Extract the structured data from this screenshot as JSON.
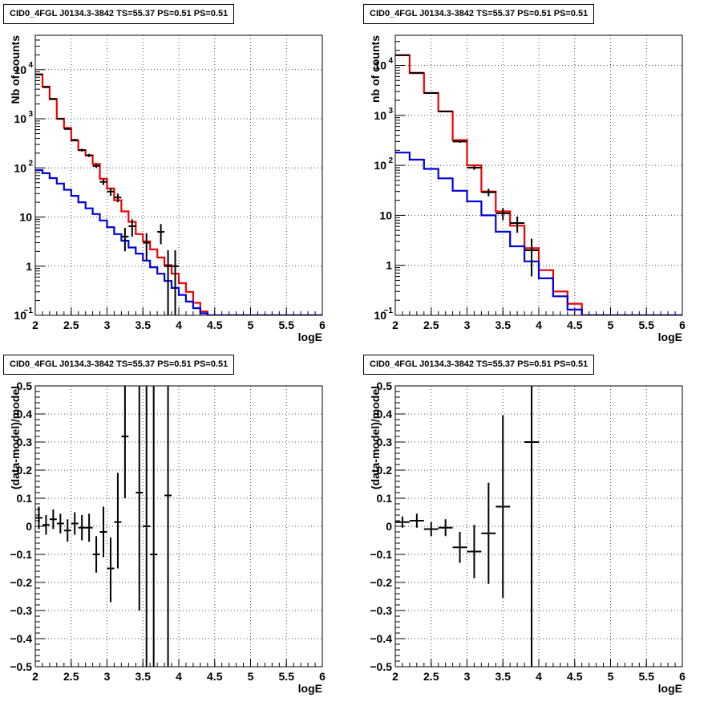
{
  "chart_data": [
    {
      "type": "line",
      "title": "CID0_4FGL J0134.3-3842 TS=55.37 PS=0.51 PS=0.51",
      "xlabel": "logE",
      "ylabel": "Nb of counts",
      "yscale": "log",
      "xlim": [
        2,
        6
      ],
      "ylim": [
        0.1,
        50000
      ],
      "grid": true,
      "x_ticks": [
        "2",
        "2.5",
        "3",
        "3.5",
        "4",
        "4.5",
        "5",
        "5.5",
        "6"
      ],
      "y_ticks": [
        {
          "value": 0.1,
          "label": "10",
          "exp": "−1"
        },
        {
          "value": 1,
          "label": "1",
          "exp": ""
        },
        {
          "value": 10,
          "label": "10",
          "exp": ""
        },
        {
          "value": 100,
          "label": "10",
          "exp": "2"
        },
        {
          "value": 1000,
          "label": "10",
          "exp": "3"
        },
        {
          "value": 10000,
          "label": "10",
          "exp": "4"
        }
      ],
      "series": [
        {
          "color": "#ee0000",
          "style": "step",
          "bin_edges": [
            2,
            2.1,
            2.2,
            2.3,
            2.4,
            2.5,
            2.6,
            2.7,
            2.8,
            2.9,
            3,
            3.1,
            3.2,
            3.3,
            3.4,
            3.5,
            3.6,
            3.7,
            3.8,
            3.9,
            4,
            4.1,
            4.2,
            4.3,
            4.4,
            4.5,
            4.6,
            4.7,
            4.8,
            4.9,
            5,
            5.1,
            5.2,
            5.3,
            5.4,
            5.5,
            5.6,
            5.7,
            5.8,
            5.9,
            6
          ],
          "values": [
            8000,
            4500,
            2500,
            1000,
            650,
            360,
            230,
            180,
            120,
            60,
            38,
            22,
            13,
            8,
            4.5,
            3.2,
            2.2,
            1.5,
            1.05,
            0.7,
            0.45,
            0.3,
            0.18,
            0.12,
            0.1,
            0.1,
            0.1,
            0.1,
            0.1,
            0.1,
            0.1,
            0.1,
            0.1,
            0.1,
            0.1,
            0.1,
            0.1,
            0.1,
            0.1,
            0.1
          ]
        },
        {
          "color": "#0000dd",
          "style": "step",
          "bin_edges": [
            2,
            2.1,
            2.2,
            2.3,
            2.4,
            2.5,
            2.6,
            2.7,
            2.8,
            2.9,
            3,
            3.1,
            3.2,
            3.3,
            3.4,
            3.5,
            3.6,
            3.7,
            3.8,
            3.9,
            4,
            4.1,
            4.2,
            4.3,
            4.4,
            4.5,
            4.6,
            4.7,
            4.8,
            4.9,
            5,
            5.1,
            5.2,
            5.3,
            5.4,
            5.5,
            5.6,
            5.7,
            5.8,
            5.9,
            6
          ],
          "values": [
            90,
            78,
            62,
            48,
            36,
            27,
            20,
            15,
            11.5,
            8.5,
            6.2,
            4.5,
            3.3,
            2.4,
            1.8,
            1.3,
            0.95,
            0.7,
            0.5,
            0.36,
            0.26,
            0.19,
            0.14,
            0.11,
            0.1,
            0.1,
            0.1,
            0.1,
            0.1,
            0.1,
            0.1,
            0.1,
            0.1,
            0.1,
            0.1,
            0.1,
            0.1,
            0.1,
            0.1,
            0.1
          ]
        },
        {
          "color": "#000000",
          "style": "points",
          "points": [
            {
              "x": 2.05,
              "y": 8000,
              "lo": 7900,
              "hi": 8100
            },
            {
              "x": 2.15,
              "y": 4400,
              "lo": 4330,
              "hi": 4470
            },
            {
              "x": 2.25,
              "y": 2550,
              "lo": 2500,
              "hi": 2600
            },
            {
              "x": 2.35,
              "y": 1000,
              "lo": 970,
              "hi": 1030
            },
            {
              "x": 2.45,
              "y": 620,
              "lo": 595,
              "hi": 645
            },
            {
              "x": 2.55,
              "y": 370,
              "lo": 350,
              "hi": 390
            },
            {
              "x": 2.65,
              "y": 230,
              "lo": 215,
              "hi": 245
            },
            {
              "x": 2.75,
              "y": 180,
              "lo": 167,
              "hi": 193
            },
            {
              "x": 2.85,
              "y": 110,
              "lo": 100,
              "hi": 120
            },
            {
              "x": 2.95,
              "y": 52,
              "lo": 45,
              "hi": 59
            },
            {
              "x": 3.05,
              "y": 33,
              "lo": 27,
              "hi": 39
            },
            {
              "x": 3.15,
              "y": 25,
              "lo": 20,
              "hi": 30
            },
            {
              "x": 3.25,
              "y": 4,
              "lo": 2,
              "hi": 6
            },
            {
              "x": 3.35,
              "y": 6.5,
              "lo": 4,
              "hi": 9
            },
            {
              "x": 3.55,
              "y": 3,
              "lo": 1.3,
              "hi": 4.7
            },
            {
              "x": 3.75,
              "y": 5,
              "lo": 2.8,
              "hi": 7.2
            },
            {
              "x": 3.85,
              "y": 1,
              "lo": 0.1,
              "hi": 2.1
            },
            {
              "x": 3.95,
              "y": 1,
              "lo": 0.1,
              "hi": 2.1
            }
          ]
        }
      ]
    },
    {
      "type": "line",
      "title": "CID0_4FGL J0134.3-3842 TS=55.37 PS=0.51 PS=0.51",
      "xlabel": "logE",
      "ylabel": "nb of counts",
      "yscale": "log",
      "xlim": [
        2,
        6
      ],
      "ylim": [
        0.1,
        40000
      ],
      "grid": true,
      "x_ticks": [
        "2",
        "2.5",
        "3",
        "3.5",
        "4",
        "4.5",
        "5",
        "5.5",
        "6"
      ],
      "y_ticks": [
        {
          "value": 0.1,
          "label": "10",
          "exp": "−1"
        },
        {
          "value": 1,
          "label": "1",
          "exp": ""
        },
        {
          "value": 10,
          "label": "10",
          "exp": ""
        },
        {
          "value": 100,
          "label": "10",
          "exp": "2"
        },
        {
          "value": 1000,
          "label": "10",
          "exp": "3"
        },
        {
          "value": 10000,
          "label": "10",
          "exp": "4"
        }
      ],
      "series": [
        {
          "color": "#ee0000",
          "style": "step",
          "bin_edges": [
            2,
            2.2,
            2.4,
            2.6,
            2.8,
            3,
            3.2,
            3.4,
            3.6,
            3.8,
            4,
            4.2,
            4.4,
            4.6,
            4.8,
            5,
            5.2,
            5.4,
            5.6,
            5.8,
            6
          ],
          "values": [
            16000,
            7000,
            2800,
            1200,
            320,
            100,
            30,
            12,
            6.2,
            2.2,
            0.8,
            0.3,
            0.17,
            0.1,
            0.1,
            0.1,
            0.1,
            0.1,
            0.1,
            0.1
          ]
        },
        {
          "color": "#0000dd",
          "style": "step",
          "bin_edges": [
            2,
            2.2,
            2.4,
            2.6,
            2.8,
            3,
            3.2,
            3.4,
            3.6,
            3.8,
            4,
            4.2,
            4.4,
            4.6,
            4.8,
            5,
            5.2,
            5.4,
            5.6,
            5.8,
            6
          ],
          "values": [
            180,
            130,
            85,
            55,
            31,
            19,
            10,
            4.7,
            2.4,
            1.2,
            0.55,
            0.24,
            0.13,
            0.1,
            0.1,
            0.1,
            0.1,
            0.1,
            0.1,
            0.1
          ]
        },
        {
          "color": "#000000",
          "style": "points",
          "points": [
            {
              "x": 2.1,
              "y": 16000,
              "lo": 15870,
              "hi": 16130
            },
            {
              "x": 2.3,
              "y": 7100,
              "lo": 7015,
              "hi": 7185
            },
            {
              "x": 2.5,
              "y": 2800,
              "lo": 2750,
              "hi": 2850
            },
            {
              "x": 2.7,
              "y": 1200,
              "lo": 1165,
              "hi": 1235
            },
            {
              "x": 2.9,
              "y": 300,
              "lo": 283,
              "hi": 317
            },
            {
              "x": 3.1,
              "y": 90,
              "lo": 81,
              "hi": 99
            },
            {
              "x": 3.3,
              "y": 29,
              "lo": 24,
              "hi": 34
            },
            {
              "x": 3.5,
              "y": 11,
              "lo": 8,
              "hi": 14
            },
            {
              "x": 3.7,
              "y": 7,
              "lo": 4.5,
              "hi": 9.5
            },
            {
              "x": 3.9,
              "y": 2,
              "lo": 0.6,
              "hi": 3.4
            }
          ]
        }
      ]
    },
    {
      "type": "scatter",
      "title": "CID0_4FGL J0134.3-3842 TS=55.37 PS=0.51 PS=0.51",
      "xlabel": "logE",
      "ylabel": "(data-model)/model",
      "yscale": "linear",
      "xlim": [
        2,
        6
      ],
      "ylim": [
        -0.5,
        0.5
      ],
      "grid": true,
      "x_ticks": [
        "2",
        "2.5",
        "3",
        "3.5",
        "4",
        "4.5",
        "5",
        "5.5",
        "6"
      ],
      "y_ticks": [
        {
          "value": -0.5,
          "label": "−0.5",
          "exp": ""
        },
        {
          "value": -0.4,
          "label": "−0.4",
          "exp": ""
        },
        {
          "value": -0.3,
          "label": "−0.3",
          "exp": ""
        },
        {
          "value": -0.2,
          "label": "−0.2",
          "exp": ""
        },
        {
          "value": -0.1,
          "label": "−0.1",
          "exp": ""
        },
        {
          "value": 0,
          "label": "0",
          "exp": ""
        },
        {
          "value": 0.1,
          "label": "0.1",
          "exp": ""
        },
        {
          "value": 0.2,
          "label": "0.2",
          "exp": ""
        },
        {
          "value": 0.3,
          "label": "0.3",
          "exp": ""
        },
        {
          "value": 0.4,
          "label": "0.4",
          "exp": ""
        },
        {
          "value": 0.5,
          "label": "0.5",
          "exp": ""
        }
      ],
      "series": [
        {
          "color": "#000000",
          "style": "points",
          "points": [
            {
              "x": 2.05,
              "y": 0.03,
              "lo": -0.01,
              "hi": 0.07
            },
            {
              "x": 2.15,
              "y": 0.005,
              "lo": -0.03,
              "hi": 0.04
            },
            {
              "x": 2.25,
              "y": 0.025,
              "lo": -0.01,
              "hi": 0.06
            },
            {
              "x": 2.35,
              "y": 0.01,
              "lo": -0.025,
              "hi": 0.045
            },
            {
              "x": 2.45,
              "y": -0.015,
              "lo": -0.055,
              "hi": 0.025
            },
            {
              "x": 2.55,
              "y": 0.01,
              "lo": -0.03,
              "hi": 0.05
            },
            {
              "x": 2.65,
              "y": -0.005,
              "lo": -0.05,
              "hi": 0.04
            },
            {
              "x": 2.75,
              "y": -0.005,
              "lo": -0.055,
              "hi": 0.045
            },
            {
              "x": 2.85,
              "y": -0.1,
              "lo": -0.165,
              "hi": -0.035
            },
            {
              "x": 2.95,
              "y": -0.02,
              "lo": -0.11,
              "hi": 0.07
            },
            {
              "x": 3.05,
              "y": -0.15,
              "lo": -0.27,
              "hi": -0.04
            },
            {
              "x": 3.15,
              "y": 0.015,
              "lo": -0.15,
              "hi": 0.19
            },
            {
              "x": 3.25,
              "y": 0.32,
              "lo": 0.1,
              "hi": 0.5
            },
            {
              "x": 3.45,
              "y": 0.12,
              "lo": -0.3,
              "hi": 0.5
            },
            {
              "x": 3.55,
              "y": 0,
              "lo": -0.5,
              "hi": 0.5
            },
            {
              "x": 3.65,
              "y": -0.1,
              "lo": -0.5,
              "hi": 0.5
            },
            {
              "x": 3.85,
              "y": 0.11,
              "lo": -0.5,
              "hi": 0.5
            }
          ]
        }
      ]
    },
    {
      "type": "scatter",
      "title": "CID0_4FGL J0134.3-3842 TS=55.37 PS=0.51 PS=0.51",
      "xlabel": "logE",
      "ylabel": "(data-model)/model",
      "yscale": "linear",
      "xlim": [
        2,
        6
      ],
      "ylim": [
        -0.5,
        0.5
      ],
      "grid": true,
      "x_ticks": [
        "2",
        "2.5",
        "3",
        "3.5",
        "4",
        "4.5",
        "5",
        "5.5",
        "6"
      ],
      "y_ticks": [
        {
          "value": -0.5,
          "label": "−0.5",
          "exp": ""
        },
        {
          "value": -0.4,
          "label": "−0.4",
          "exp": ""
        },
        {
          "value": -0.3,
          "label": "−0.3",
          "exp": ""
        },
        {
          "value": -0.2,
          "label": "−0.2",
          "exp": ""
        },
        {
          "value": -0.1,
          "label": "−0.1",
          "exp": ""
        },
        {
          "value": 0,
          "label": "0",
          "exp": ""
        },
        {
          "value": 0.1,
          "label": "0.1",
          "exp": ""
        },
        {
          "value": 0.2,
          "label": "0.2",
          "exp": ""
        },
        {
          "value": 0.3,
          "label": "0.3",
          "exp": ""
        },
        {
          "value": 0.4,
          "label": "0.4",
          "exp": ""
        },
        {
          "value": 0.5,
          "label": "0.5",
          "exp": ""
        }
      ],
      "series": [
        {
          "color": "#000000",
          "style": "points",
          "points": [
            {
              "x": 2.1,
              "y": 0.015,
              "lo": -0.005,
              "hi": 0.035
            },
            {
              "x": 2.3,
              "y": 0.02,
              "lo": -0.005,
              "hi": 0.045
            },
            {
              "x": 2.5,
              "y": -0.01,
              "lo": -0.035,
              "hi": 0.015
            },
            {
              "x": 2.7,
              "y": -0.005,
              "lo": -0.035,
              "hi": 0.025
            },
            {
              "x": 2.9,
              "y": -0.075,
              "lo": -0.13,
              "hi": -0.02
            },
            {
              "x": 3.1,
              "y": -0.09,
              "lo": -0.185,
              "hi": 0.005
            },
            {
              "x": 3.3,
              "y": -0.025,
              "lo": -0.205,
              "hi": 0.155
            },
            {
              "x": 3.5,
              "y": 0.07,
              "lo": -0.255,
              "hi": 0.395
            },
            {
              "x": 3.9,
              "y": 0.3,
              "lo": -0.5,
              "hi": 0.5
            }
          ]
        }
      ]
    }
  ]
}
